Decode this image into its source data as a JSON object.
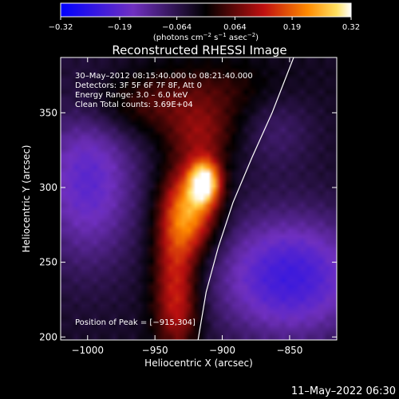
{
  "chart_data": {
    "type": "heatmap",
    "title": "Reconstructed RHESSI Image",
    "xlabel": "Heliocentric X (arcsec)",
    "ylabel": "Heliocentric Y (arcsec)",
    "xlim": [
      -1020,
      -815
    ],
    "ylim": [
      198,
      387
    ],
    "xticks": [
      -1000,
      -950,
      -900,
      -850
    ],
    "xtick_labels": [
      "−1000",
      "−950",
      "−900",
      "−850"
    ],
    "yticks": [
      200,
      250,
      300,
      350
    ],
    "ytick_labels": [
      "200",
      "250",
      "300",
      "350"
    ],
    "colorbar": {
      "min": -0.32,
      "max": 0.32,
      "ticks": [
        -0.32,
        -0.19,
        -0.064,
        0.064,
        0.19,
        0.32
      ],
      "tick_labels": [
        "−0.32",
        "−0.19",
        "−0.064",
        "0.064",
        "0.19",
        "0.32"
      ],
      "unit_text": "(photons cm",
      "unit_sup1": "−2",
      "unit_mid": " s",
      "unit_sup2": "−1",
      "unit_end": " asec",
      "unit_sup3": "−2",
      "unit_close": ")"
    },
    "annotations": [
      "30–May–2012 08:15:40.000 to 08:21:40.000",
      "Detectors: 3F 5F 6F 7F 8F, Att 0",
      "Energy Range: 3.0 – 6.0 keV",
      "Clean    Total counts: 3.69E+04"
    ],
    "peak_label": "Position of Peak = [−915,304]",
    "peak": [
      -915,
      304
    ],
    "sources": [
      {
        "x": -913,
        "y": 304,
        "amp": 0.32,
        "sx": 8,
        "sy": 10
      },
      {
        "x": -922,
        "y": 285,
        "amp": 0.22,
        "sx": 14,
        "sy": 20
      },
      {
        "x": -935,
        "y": 255,
        "amp": 0.15,
        "sx": 12,
        "sy": 32
      },
      {
        "x": -933,
        "y": 215,
        "amp": 0.1,
        "sx": 12,
        "sy": 20
      },
      {
        "x": -915,
        "y": 335,
        "amp": 0.1,
        "sx": 18,
        "sy": 14
      },
      {
        "x": -965,
        "y": 355,
        "amp": 0.08,
        "sx": 35,
        "sy": 15
      },
      {
        "x": -900,
        "y": 365,
        "amp": 0.06,
        "sx": 35,
        "sy": 15
      },
      {
        "x": -1000,
        "y": 305,
        "amp": -0.16,
        "sx": 26,
        "sy": 40
      },
      {
        "x": -850,
        "y": 240,
        "amp": -0.2,
        "sx": 40,
        "sy": 30
      },
      {
        "x": -860,
        "y": 340,
        "amp": -0.06,
        "sx": 20,
        "sy": 20
      }
    ],
    "limb_curve": [
      [
        -918,
        198
      ],
      [
        -912,
        230
      ],
      [
        -903,
        260
      ],
      [
        -892,
        290
      ],
      [
        -878,
        320
      ],
      [
        -863,
        350
      ],
      [
        -847,
        387
      ]
    ]
  },
  "footer_date": "11–May–2022 06:30",
  "colors": {
    "background": "#000000",
    "text": "#ffffff",
    "limb": "#ffffff"
  }
}
